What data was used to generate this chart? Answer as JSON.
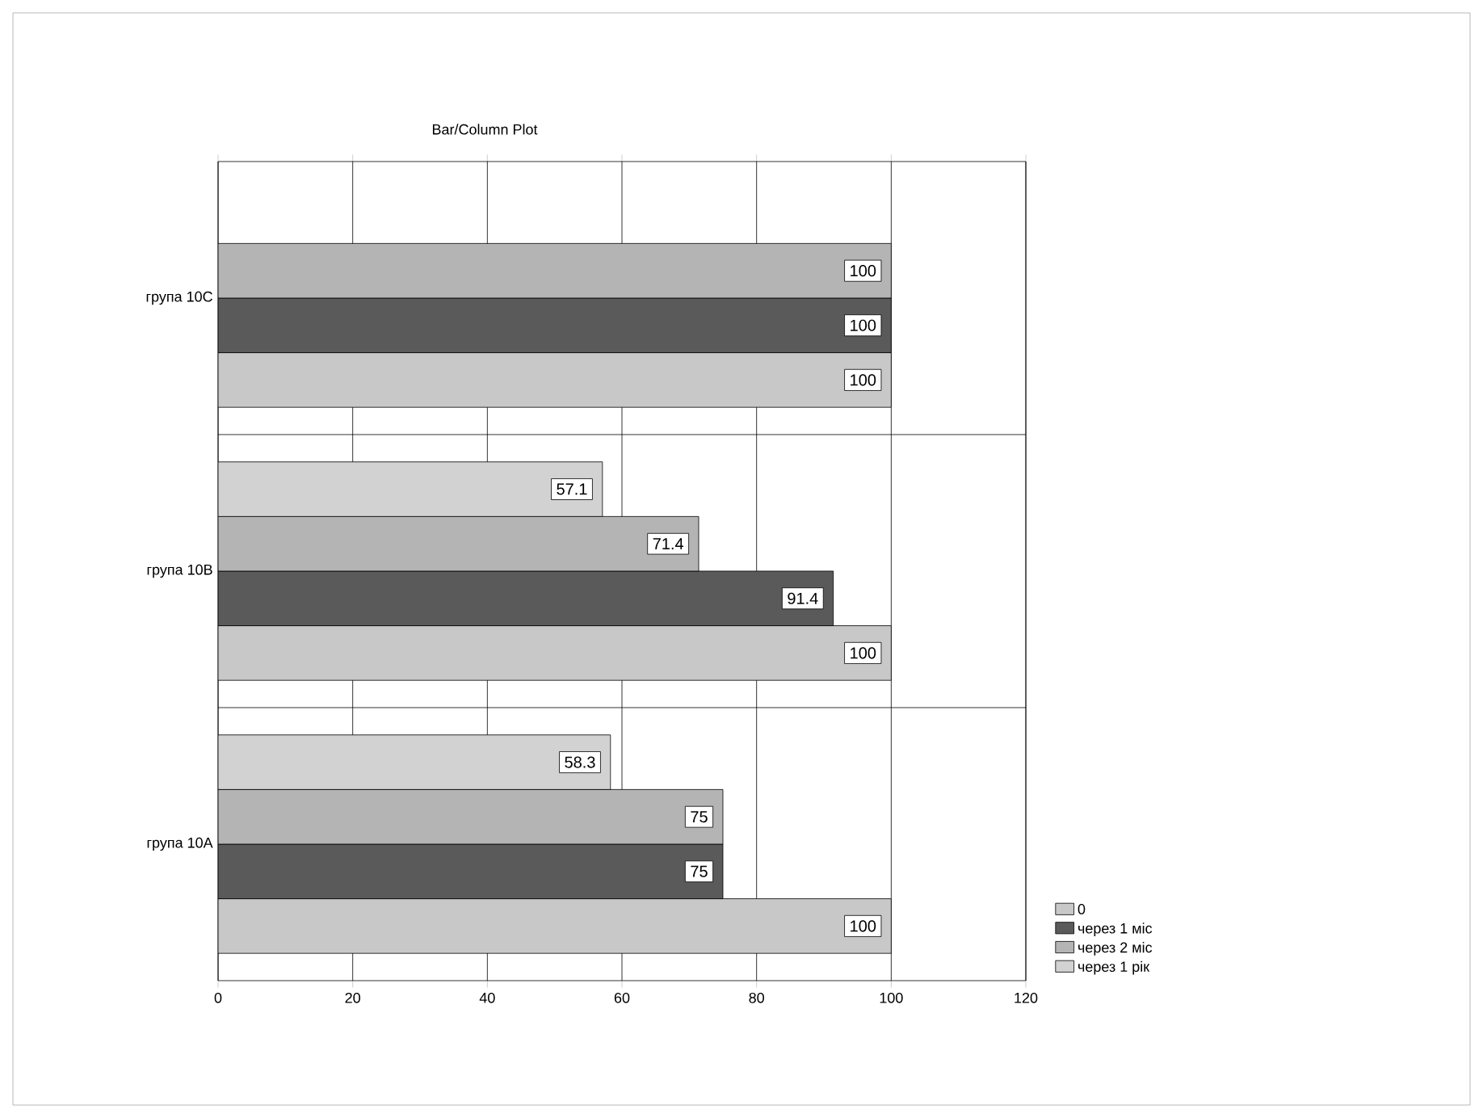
{
  "chart_data": {
    "type": "bar",
    "orientation": "horizontal",
    "title": "Bar/Column Plot",
    "categories": [
      "група  10C",
      "група  10B",
      "група  10A"
    ],
    "series": [
      {
        "name": "0",
        "color": "#c8c8c8",
        "values": [
          100,
          100,
          100
        ]
      },
      {
        "name": "через 1 міс",
        "color": "#5a5a5a",
        "values": [
          100,
          91.4,
          75
        ]
      },
      {
        "name": "через 2 міс",
        "color": "#b4b4b4",
        "values": [
          100,
          71.4,
          75
        ]
      },
      {
        "name": "через 1 рік",
        "color": "#d2d2d2",
        "values": [
          null,
          57.1,
          58.3
        ]
      }
    ],
    "xlim": [
      0,
      120
    ],
    "xticks": [
      0,
      20,
      40,
      60,
      80,
      100,
      120
    ],
    "grid": true,
    "legend": "bottom right",
    "data_labels": true
  }
}
